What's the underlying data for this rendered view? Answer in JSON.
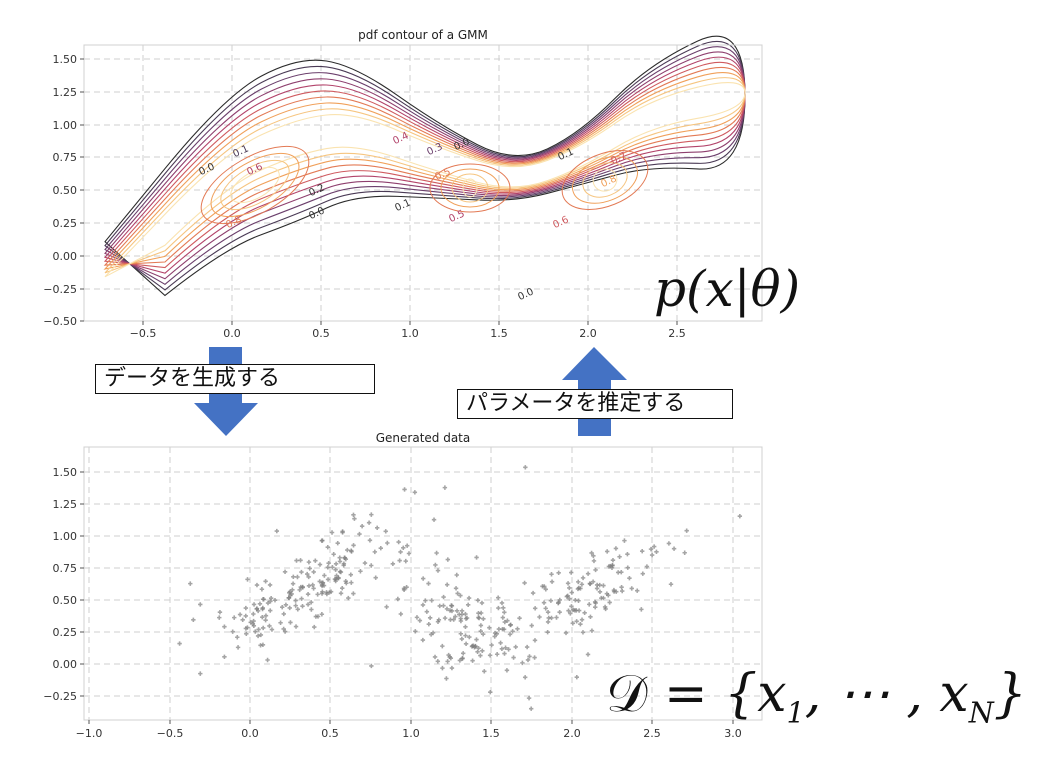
{
  "top_plot": {
    "title": "pdf contour of a GMM",
    "x_ticks": [
      "−0.5",
      "0.0",
      "0.5",
      "1.0",
      "1.5",
      "2.0",
      "2.5"
    ],
    "y_ticks": [
      "1.50",
      "1.25",
      "1.00",
      "0.75",
      "0.50",
      "0.25",
      "0.00",
      "−0.25",
      "−0.50"
    ],
    "contour_labels": [
      "0.0",
      "0.1",
      "0.6",
      "0.2",
      "0.8",
      "0.0",
      "0.4",
      "0.3",
      "0.0",
      "0.5",
      "0.1",
      "0.5",
      "0.1",
      "0.7",
      "0.8",
      "0.6",
      "0.0"
    ],
    "contour_colors": [
      "#2b2b2b",
      "#4a3a55",
      "#6b3f6c",
      "#8e3f6e",
      "#b2436a",
      "#cf5a5f",
      "#e37a55",
      "#f0a05a",
      "#f6c580",
      "#fae3b0"
    ],
    "formula": "p(x|θ)"
  },
  "bottom_plot": {
    "title": "Generated data",
    "x_ticks": [
      "−1.0",
      "−0.5",
      "0.0",
      "0.5",
      "1.0",
      "1.5",
      "2.0",
      "2.5",
      "3.0"
    ],
    "y_ticks": [
      "1.50",
      "1.25",
      "1.00",
      "0.75",
      "0.50",
      "0.25",
      "0.00",
      "−0.25"
    ],
    "point_color": "#7f7f7f",
    "formula": {
      "lhs": "𝒟",
      "body": " = {x",
      "sub1": "1",
      "mid": ", ⋯ , x",
      "subN": "N",
      "end": "}"
    }
  },
  "arrows": {
    "generate_label": "データを生成する",
    "estimate_label": "パラメータを推定する",
    "color": "#4472c4"
  }
}
